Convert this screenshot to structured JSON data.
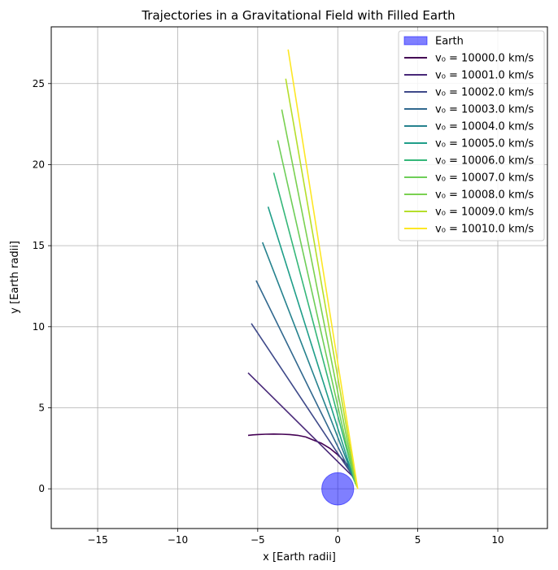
{
  "chart_data": {
    "type": "line",
    "title": "Trajectories in a Gravitational Field with Filled Earth",
    "xlabel": "x [Earth radii]",
    "ylabel": "y [Earth radii]",
    "xlim": [
      -17.9,
      13.1
    ],
    "ylim": [
      -2.45,
      28.5
    ],
    "xticks": [
      -15,
      -10,
      -5,
      0,
      5,
      10
    ],
    "yticks": [
      0,
      5,
      10,
      15,
      20,
      25
    ],
    "grid": true,
    "legend_position": "top-right",
    "earth": {
      "label": "Earth",
      "center": [
        0,
        0
      ],
      "radius": 1,
      "color": "#0000ff"
    },
    "series": [
      {
        "name": "v₀ = 10000.0 km/s",
        "color": "#440154",
        "x": [
          1.0,
          0.5,
          0.0,
          -0.5,
          -1.0,
          -1.5,
          -2.0,
          -2.5,
          -3.0,
          -3.5,
          -4.0,
          -4.5,
          -5.0,
          -5.3,
          -5.6
        ],
        "y": [
          1.0,
          1.6,
          2.1,
          2.5,
          2.8,
          3.0,
          3.2,
          3.3,
          3.35,
          3.37,
          3.38,
          3.37,
          3.35,
          3.33,
          3.3
        ]
      },
      {
        "name": "v₀ = 10001.0 km/s",
        "color": "#482878",
        "x": [
          1.0,
          -5.6
        ],
        "y": [
          0.7,
          7.15
        ]
      },
      {
        "name": "v₀ = 10002.0 km/s",
        "color": "#3e4989",
        "x": [
          1.0,
          -5.4
        ],
        "y": [
          0.7,
          10.2
        ]
      },
      {
        "name": "v₀ = 10003.0 km/s",
        "color": "#31688e",
        "x": [
          1.0,
          -5.1
        ],
        "y": [
          0.6,
          12.85
        ]
      },
      {
        "name": "v₀ = 10004.0 km/s",
        "color": "#26828e",
        "x": [
          1.05,
          -4.7
        ],
        "y": [
          0.5,
          15.2
        ]
      },
      {
        "name": "v₀ = 10005.0 km/s",
        "color": "#1f9e89",
        "x": [
          1.05,
          -4.35
        ],
        "y": [
          0.45,
          17.4
        ]
      },
      {
        "name": "v₀ = 10006.0 km/s",
        "color": "#35b779",
        "x": [
          1.1,
          -4.0
        ],
        "y": [
          0.4,
          19.5
        ]
      },
      {
        "name": "v₀ = 10007.0 km/s",
        "color": "#6ece58",
        "x": [
          1.1,
          -3.75
        ],
        "y": [
          0.3,
          21.5
        ]
      },
      {
        "name": "v₀ = 10008.0 km/s",
        "color": "#7ad151",
        "x": [
          1.15,
          -3.5
        ],
        "y": [
          0.2,
          23.4
        ]
      },
      {
        "name": "v₀ = 10009.0 km/s",
        "color": "#b5de2b",
        "x": [
          1.2,
          -3.25
        ],
        "y": [
          0.1,
          25.3
        ]
      },
      {
        "name": "v₀ = 10010.0 km/s",
        "color": "#fde725",
        "x": [
          1.25,
          -3.1
        ],
        "y": [
          0.0,
          27.1
        ]
      }
    ]
  }
}
